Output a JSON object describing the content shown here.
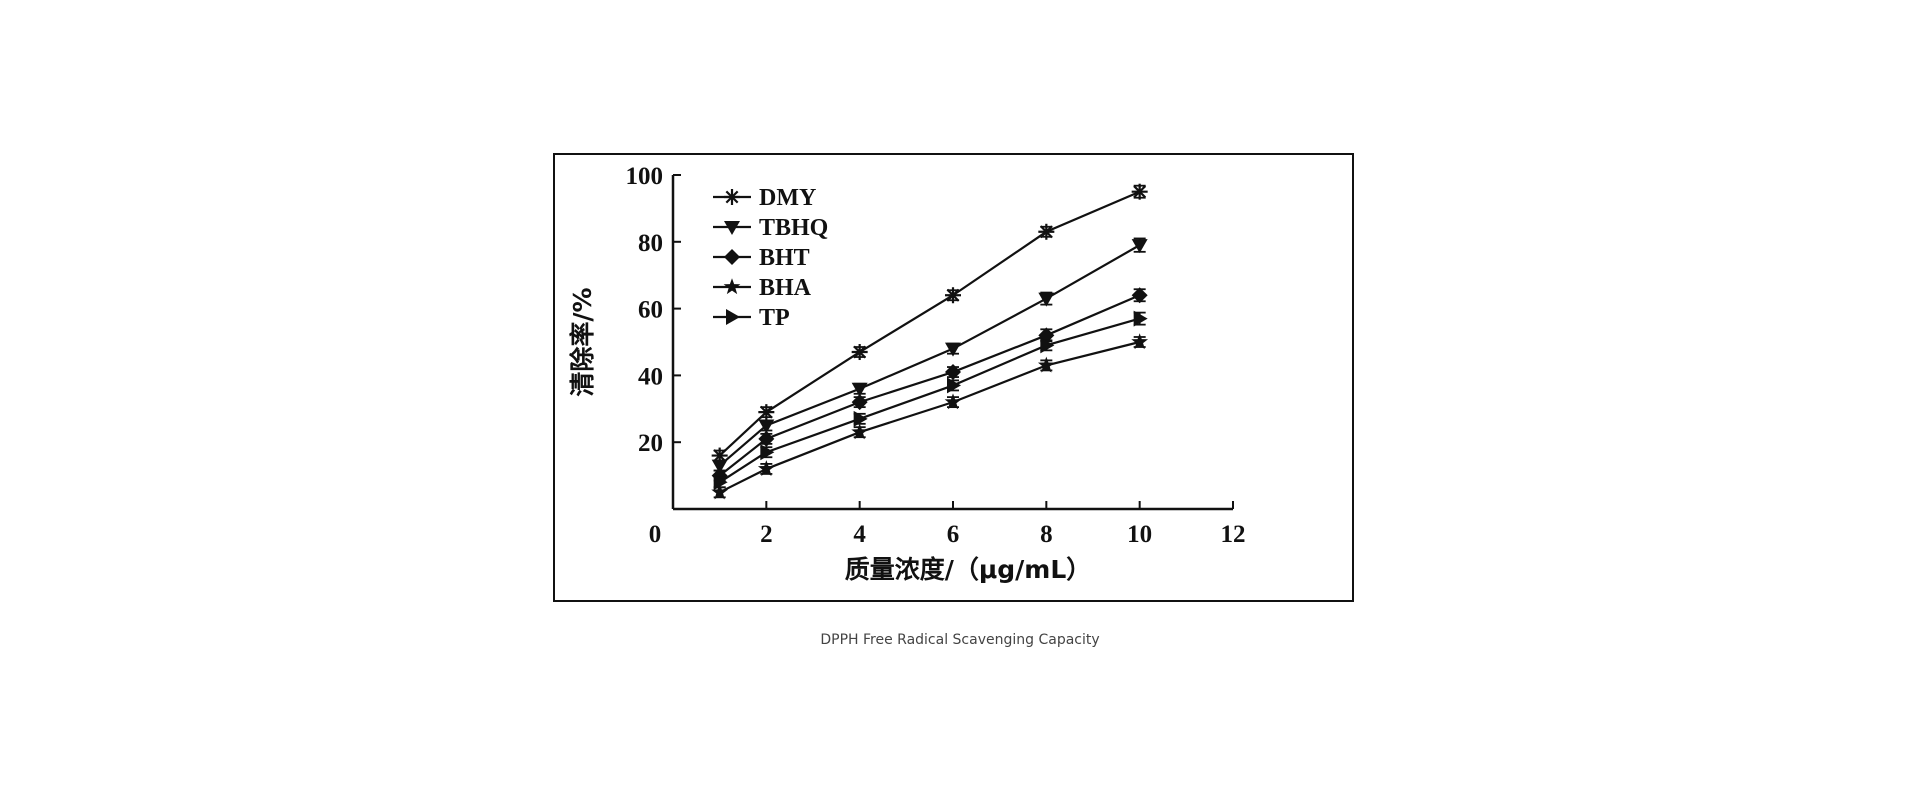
{
  "caption": "DPPH Free Radical Scavenging Capacity",
  "chart_data": {
    "type": "line",
    "xlabel": "质量浓度/（μg/mL）",
    "ylabel": "清除率/%",
    "xlim": [
      0,
      12
    ],
    "ylim": [
      0,
      100
    ],
    "x_ticks": [
      "0",
      "2",
      "4",
      "6",
      "8",
      "10",
      "12"
    ],
    "y_ticks": [
      "20",
      "40",
      "60",
      "80",
      "100"
    ],
    "x": [
      1,
      2,
      4,
      6,
      8,
      10
    ],
    "legend_position": "top-left",
    "grid": false,
    "series": [
      {
        "name": "DMY",
        "marker": "asterisk",
        "values": [
          16,
          29,
          47,
          64,
          83,
          95
        ],
        "errors": [
          1.5,
          1.5,
          1.5,
          1.5,
          1.5,
          1.8
        ]
      },
      {
        "name": "TBHQ",
        "marker": "triangle-down",
        "values": [
          13,
          25,
          36,
          48,
          63,
          79
        ],
        "errors": [
          1.5,
          1.5,
          1.5,
          1.5,
          1.8,
          2.0
        ]
      },
      {
        "name": "BHT",
        "marker": "diamond",
        "values": [
          10,
          21,
          32,
          41,
          52,
          64
        ],
        "errors": [
          1.5,
          1.5,
          1.5,
          1.5,
          1.8,
          1.8
        ]
      },
      {
        "name": "BHA",
        "marker": "star",
        "values": [
          5,
          12,
          23,
          32,
          43,
          50
        ],
        "errors": [
          1.5,
          1.5,
          1.5,
          1.5,
          1.5,
          1.5
        ]
      },
      {
        "name": "TP",
        "marker": "triangle-right",
        "values": [
          8,
          17,
          27,
          37,
          49,
          57
        ],
        "errors": [
          1.5,
          1.5,
          1.5,
          1.5,
          1.5,
          1.8
        ]
      }
    ]
  }
}
